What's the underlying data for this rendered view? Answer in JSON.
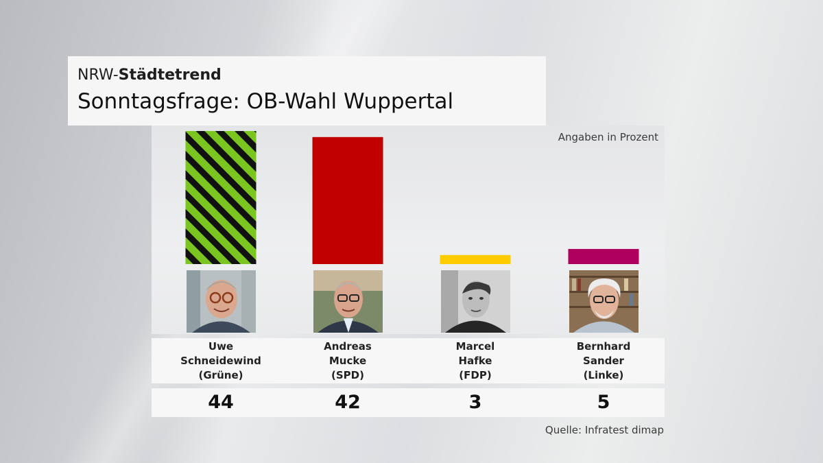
{
  "header": {
    "kicker_prefix": "NRW-",
    "kicker_bold": "Städtetrend",
    "title": "Sonntagsfrage: OB-Wahl Wuppertal"
  },
  "unit_note": "Angaben in Prozent",
  "source": "Quelle: Infratest dimap",
  "chart_data": {
    "type": "bar",
    "title": "Sonntagsfrage: OB-Wahl Wuppertal",
    "subtitle": "NRW-Städtetrend",
    "ylabel": "Angaben in Prozent",
    "xlabel": "",
    "ylim": [
      0,
      44
    ],
    "grid": false,
    "categories": [
      "Uwe Schneidewind (Grüne)",
      "Andreas Mucke (SPD)",
      "Marcel Hafke (FDP)",
      "Bernhard Sander (Linke)"
    ],
    "values": [
      44,
      42,
      3,
      5
    ],
    "bars": [
      {
        "first": "Uwe",
        "last": "Schneidewind",
        "party": "(Grüne)",
        "value": 44,
        "color": "#7ac520",
        "pattern": "stripes",
        "stripe_color": "#111111"
      },
      {
        "first": "Andreas",
        "last": "Mucke",
        "party": "(SPD)",
        "value": 42,
        "color": "#c10000",
        "pattern": "solid"
      },
      {
        "first": "Marcel",
        "last": "Hafke",
        "party": "(FDP)",
        "value": 3,
        "color": "#ffcc00",
        "pattern": "solid"
      },
      {
        "first": "Bernhard",
        "last": "Sander",
        "party": "(Linke)",
        "value": 5,
        "color": "#b0005e",
        "pattern": "solid"
      }
    ]
  }
}
